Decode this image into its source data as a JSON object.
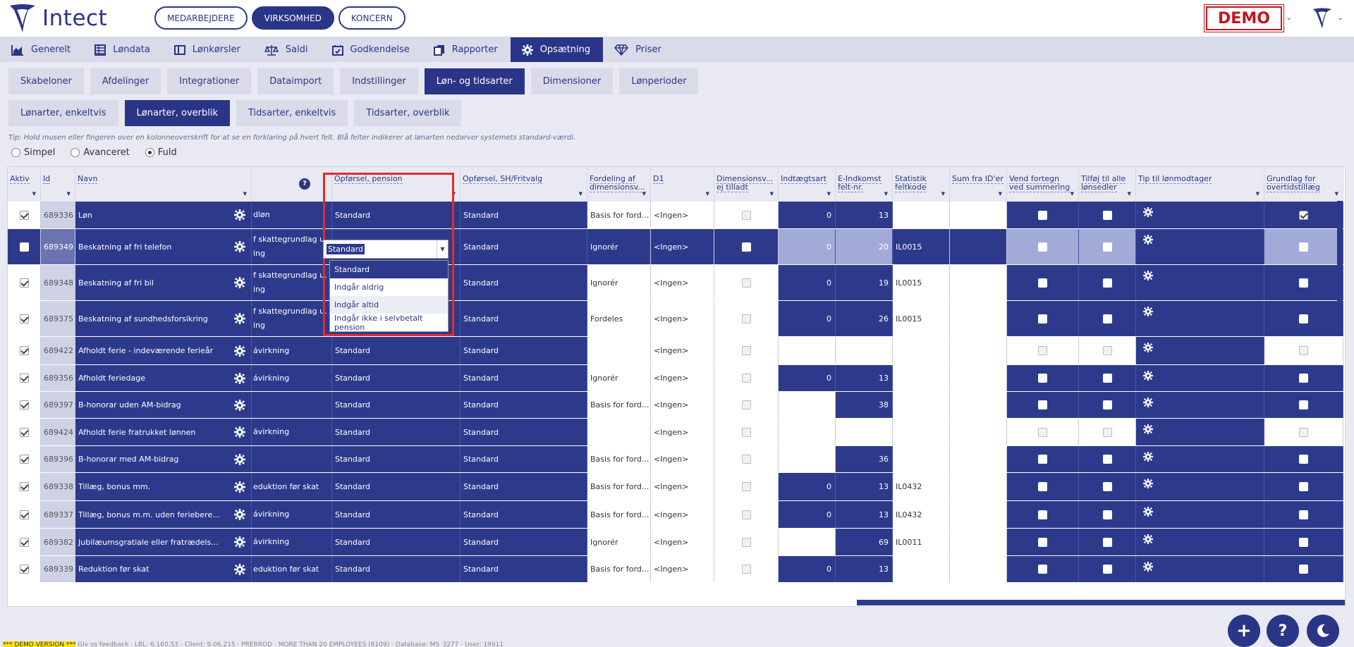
{
  "app": {
    "name": "Intect"
  },
  "top_pills": [
    "MEDARBEJDERE",
    "VIRKSOMHED",
    "KONCERN"
  ],
  "top_pills_active": 1,
  "demo_badge": "DEMO",
  "main_nav": [
    {
      "label": "Generelt",
      "icon": "chart-icon"
    },
    {
      "label": "Løndata",
      "icon": "table-icon"
    },
    {
      "label": "Lønkørsler",
      "icon": "window-icon"
    },
    {
      "label": "Saldi",
      "icon": "scale-icon"
    },
    {
      "label": "Godkendelse",
      "icon": "calendar-check-icon"
    },
    {
      "label": "Rapporter",
      "icon": "copy-icon"
    },
    {
      "label": "Opsætning",
      "icon": "gear-icon"
    },
    {
      "label": "Priser",
      "icon": "diamond-icon"
    }
  ],
  "sub_tabs": [
    "Skabeloner",
    "Afdelinger",
    "Integrationer",
    "Dataimport",
    "Indstillinger",
    "Løn- og tidsarter",
    "Dimensioner",
    "Lønperioder"
  ],
  "sub_tabs2": [
    "Lønarter, enkeltvis",
    "Lønarter, overblik",
    "Tidsarter, enkeltvis",
    "Tidsarter, overblik"
  ],
  "tip": "Tip: Hold musen eller fingeren over en kolonneoverskrift for at se en forklaring på hvert felt. Blå felter indikerer at lønarten nedarver systemets standard-værdi.",
  "view_modes": [
    "Simpel",
    "Avanceret",
    "Fuld"
  ],
  "view_mode_selected": "Fuld",
  "columns": {
    "aktiv": "Aktiv",
    "id": "Id",
    "navn": "Navn",
    "help": "?",
    "pension": "Opførsel, pension",
    "sh": "Opførsel, SH/Fritvalg",
    "fordeling": "Fordeling af dimensionsv...",
    "d1": "D1",
    "dimtilladt": "Dimensionsv... ej tilladt",
    "indtaegt": "Indtægtsart",
    "eindkomst": "E-Indkomst felt-nr.",
    "statistik": "Statistik feltkode",
    "sumfra": "Sum fra ID'er",
    "vend": "Vend fortegn ved summering",
    "tilfoj": "Tilføj til alle lønsedler",
    "tip": "Tip til lønmodtager",
    "grundlag": "Grundlag for overtidstillæg"
  },
  "rows": [
    {
      "id": "689336",
      "navn": "Løn",
      "col4": "dløn",
      "col4b": "",
      "pension": "Standard",
      "sh": "Standard",
      "fordeling": "Basis for ford...",
      "d1": "<Ingen>",
      "indtaegt": "0",
      "eindkomst": "13",
      "statistik": "",
      "grundlag": true
    },
    {
      "id": "689349",
      "navn": "Beskatning af fri telefon",
      "col4": "f skattegrundlag u.",
      "col4b": "ing",
      "pension": "Standard",
      "sh": "Standard",
      "fordeling": "Ignorér",
      "d1": "<Ingen>",
      "indtaegt": "0",
      "eindkomst": "20",
      "statistik": "IL0015",
      "grundlag": false
    },
    {
      "id": "689348",
      "navn": "Beskatning af fri bil",
      "col4": "f skattegrundlag u.",
      "col4b": "ing",
      "pension": "Standard",
      "sh": "Standard",
      "fordeling": "Ignorér",
      "d1": "<Ingen>",
      "indtaegt": "0",
      "eindkomst": "19",
      "statistik": "IL0015",
      "grundlag": false
    },
    {
      "id": "689375",
      "navn": "Beskatning af sundhedsforsikring",
      "col4": "f skattegrundlag u.",
      "col4b": "ing",
      "pension": "Standard",
      "sh": "Standard",
      "fordeling": "Fordeles",
      "d1": "<Ingen>",
      "indtaegt": "0",
      "eindkomst": "26",
      "statistik": "IL0015",
      "grundlag": false
    },
    {
      "id": "689422",
      "navn": "Afholdt ferie - indeværende ferieår",
      "col4": "ávirkning",
      "col4b": "",
      "pension": "Standard",
      "sh": "Standard",
      "fordeling": "",
      "d1": "<Ingen>",
      "indtaegt": "",
      "eindkomst": "",
      "statistik": "",
      "grundlag": false
    },
    {
      "id": "689356",
      "navn": "Afholdt feriedage",
      "col4": "ávirkning",
      "col4b": "",
      "pension": "Standard",
      "sh": "Standard",
      "fordeling": "Ignorér",
      "d1": "<Ingen>",
      "indtaegt": "0",
      "eindkomst": "13",
      "statistik": "",
      "grundlag": false
    },
    {
      "id": "689397",
      "navn": "B-honorar uden AM-bidrag",
      "col4": "",
      "col4b": "",
      "pension": "Standard",
      "sh": "Standard",
      "fordeling": "Basis for ford...",
      "d1": "<Ingen>",
      "indtaegt": "",
      "eindkomst": "38",
      "statistik": "",
      "grundlag": false
    },
    {
      "id": "689424",
      "navn": "Afholdt ferie fratrukket lønnen",
      "col4": "ávirkning",
      "col4b": "",
      "pension": "Standard",
      "sh": "Standard",
      "fordeling": "",
      "d1": "<Ingen>",
      "indtaegt": "",
      "eindkomst": "",
      "statistik": "",
      "grundlag": false
    },
    {
      "id": "689396",
      "navn": "B-honorar med AM-bidrag",
      "col4": "",
      "col4b": "",
      "pension": "Standard",
      "sh": "Standard",
      "fordeling": "Basis for ford...",
      "d1": "<Ingen>",
      "indtaegt": "",
      "eindkomst": "36",
      "statistik": "",
      "grundlag": false
    },
    {
      "id": "689338",
      "navn": "Tillæg, bonus mm.",
      "col4": "eduktion før skat",
      "col4b": "",
      "pension": "Standard",
      "sh": "Standard",
      "fordeling": "Basis for ford...",
      "d1": "<Ingen>",
      "indtaegt": "0",
      "eindkomst": "13",
      "statistik": "IL0432",
      "grundlag": false
    },
    {
      "id": "689337",
      "navn": "Tillæg, bonus m.m. uden feriebere...",
      "col4": "ávirkning",
      "col4b": "",
      "pension": "Standard",
      "sh": "Standard",
      "fordeling": "Basis for ford...",
      "d1": "<Ingen>",
      "indtaegt": "0",
      "eindkomst": "13",
      "statistik": "IL0432",
      "grundlag": false
    },
    {
      "id": "689382",
      "navn": "Jubilæumsgratiale eller fratrædels...",
      "col4": "ávirkning",
      "col4b": "",
      "pension": "Standard",
      "sh": "Standard",
      "fordeling": "Ignorér",
      "d1": "<Ingen>",
      "indtaegt": "",
      "eindkomst": "69",
      "statistik": "IL0011",
      "grundlag": false
    },
    {
      "id": "689339",
      "navn": "Reduktion før skat",
      "col4": "eduktion før skat",
      "col4b": "",
      "pension": "Standard",
      "sh": "Standard",
      "fordeling": "Basis for ford...",
      "d1": "<Ingen>",
      "indtaegt": "0",
      "eindkomst": "13",
      "statistik": "",
      "grundlag": false
    }
  ],
  "dropdown": {
    "current": "Standard",
    "options": [
      "Standard",
      "Indgår aldrig",
      "Indgår altid",
      "Indgår ikke i selvbetalt pension"
    ]
  },
  "footer": {
    "badge": "*** DEMO VERSION ***",
    "text": "Giv os feedback  ·  LBL: 6.160.53  ·  Client: 6.06.215  ·  PRERROD  ·  MORE THAN 20 EMPLOYEES (6109)  ·  Database: MS_3277  ·  User: 19911"
  },
  "colors": {
    "primary": "#2b3587",
    "dark_cell": "#2d3a8c",
    "selected_row": "#a2aad8",
    "highlight": "#e32b2b",
    "demo": "#c8141e"
  }
}
